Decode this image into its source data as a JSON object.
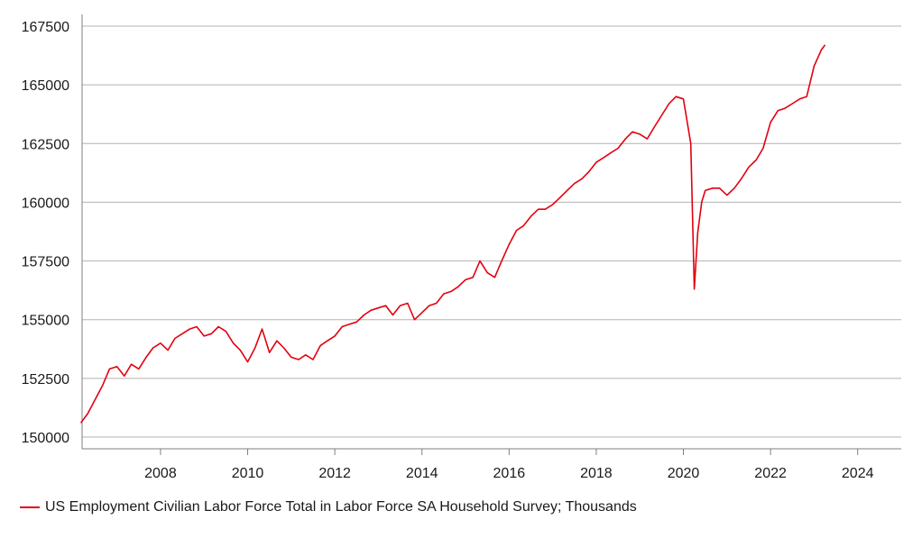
{
  "chart_data": {
    "type": "line",
    "title": "",
    "xlabel": "",
    "ylabel": "",
    "xlim": [
      2006.2,
      2025.0
    ],
    "ylim": [
      149500,
      168000
    ],
    "grid": "horizontal",
    "legend_position": "bottom-left",
    "x_ticks": [
      2008,
      2010,
      2012,
      2014,
      2016,
      2018,
      2020,
      2022,
      2024
    ],
    "x_tick_labels": [
      "2008",
      "2010",
      "2012",
      "2014",
      "2016",
      "2018",
      "2020",
      "2022",
      "2024"
    ],
    "y_ticks": [
      150000,
      152500,
      155000,
      157500,
      160000,
      162500,
      165000,
      167500
    ],
    "y_tick_labels": [
      "150000",
      "152500",
      "155000",
      "157500",
      "160000",
      "162500",
      "165000",
      "167500"
    ],
    "series": [
      {
        "name": "US Employment Civilian Labor Force Total in Labor Force SA Household Survey; Thousands",
        "color": "#e3000f",
        "x": [
          2006.17,
          2006.33,
          2006.5,
          2006.67,
          2006.83,
          2007.0,
          2007.17,
          2007.33,
          2007.5,
          2007.67,
          2007.83,
          2008.0,
          2008.17,
          2008.33,
          2008.5,
          2008.67,
          2008.83,
          2009.0,
          2009.17,
          2009.33,
          2009.5,
          2009.67,
          2009.83,
          2010.0,
          2010.17,
          2010.33,
          2010.5,
          2010.67,
          2010.83,
          2011.0,
          2011.17,
          2011.33,
          2011.5,
          2011.67,
          2011.83,
          2012.0,
          2012.17,
          2012.33,
          2012.5,
          2012.67,
          2012.83,
          2013.0,
          2013.17,
          2013.33,
          2013.5,
          2013.67,
          2013.83,
          2014.0,
          2014.17,
          2014.33,
          2014.5,
          2014.67,
          2014.83,
          2015.0,
          2015.17,
          2015.33,
          2015.5,
          2015.67,
          2015.83,
          2016.0,
          2016.17,
          2016.33,
          2016.5,
          2016.67,
          2016.83,
          2017.0,
          2017.17,
          2017.33,
          2017.5,
          2017.67,
          2017.83,
          2018.0,
          2018.17,
          2018.33,
          2018.5,
          2018.67,
          2018.83,
          2019.0,
          2019.17,
          2019.33,
          2019.5,
          2019.67,
          2019.83,
          2020.0,
          2020.17,
          2020.25,
          2020.33,
          2020.42,
          2020.5,
          2020.67,
          2020.83,
          2021.0,
          2021.17,
          2021.33,
          2021.5,
          2021.67,
          2021.83,
          2022.0,
          2022.17,
          2022.33,
          2022.5,
          2022.67,
          2022.83,
          2023.0,
          2023.17,
          2023.25
        ],
        "values": [
          150600,
          151000,
          151600,
          152200,
          152900,
          153000,
          152600,
          153100,
          152900,
          153400,
          153800,
          154000,
          153700,
          154200,
          154400,
          154600,
          154700,
          154300,
          154400,
          154700,
          154500,
          154000,
          153700,
          153200,
          153800,
          154600,
          153600,
          154100,
          153800,
          153400,
          153300,
          153500,
          153300,
          153900,
          154100,
          154300,
          154700,
          154800,
          154900,
          155200,
          155400,
          155500,
          155600,
          155200,
          155600,
          155700,
          155000,
          155300,
          155600,
          155700,
          156100,
          156200,
          156400,
          156700,
          156800,
          157500,
          157000,
          156800,
          157500,
          158200,
          158800,
          159000,
          159400,
          159700,
          159700,
          159900,
          160200,
          160500,
          160800,
          161000,
          161300,
          161700,
          161900,
          162100,
          162300,
          162700,
          163000,
          162900,
          162700,
          163200,
          163700,
          164200,
          164500,
          164400,
          162500,
          156300,
          158700,
          160000,
          160500,
          160600,
          160600,
          160300,
          160600,
          161000,
          161500,
          161800,
          162300,
          163400,
          163900,
          164000,
          164200,
          164400,
          164500,
          165800,
          166500,
          166700
        ]
      }
    ]
  }
}
